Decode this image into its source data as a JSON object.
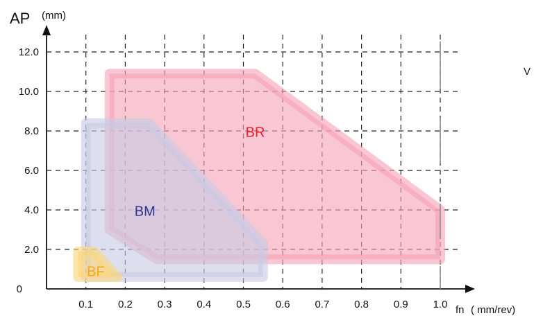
{
  "chart_data": {
    "type": "area",
    "x_axis": {
      "label": "fn",
      "unit": "( mm/rev)",
      "ticks": [
        "0.1",
        "0.2",
        "0.3",
        "0.4",
        "0.5",
        "0.6",
        "0.7",
        "0.8",
        "0.9",
        "1.0"
      ],
      "range": [
        0.0,
        1.05
      ]
    },
    "y_axis": {
      "label": "AP",
      "unit": "(mm)",
      "ticks": [
        "0",
        "2.0",
        "4.0",
        "6.0",
        "8.0",
        "10.0",
        "12.0"
      ],
      "range": [
        0,
        12.9
      ]
    },
    "grid": true,
    "regions": [
      {
        "name": "BR",
        "color": "#f5a3b8",
        "label_color": "#e8202e",
        "label_at": [
          0.53,
          7.7
        ],
        "polygon": [
          [
            0.16,
            10.9
          ],
          [
            0.53,
            10.9
          ],
          [
            1.0,
            4.0
          ],
          [
            1.0,
            1.5
          ],
          [
            0.28,
            1.5
          ],
          [
            0.16,
            3.0
          ]
        ]
      },
      {
        "name": "BM",
        "color": "#c8cce3",
        "label_color": "#2f3590",
        "label_at": [
          0.25,
          3.7
        ],
        "polygon": [
          [
            0.1,
            8.4
          ],
          [
            0.26,
            8.4
          ],
          [
            0.55,
            2.3
          ],
          [
            0.55,
            0.6
          ],
          [
            0.1,
            0.6
          ]
        ]
      },
      {
        "name": "BF",
        "color": "#fcd67a",
        "label_color": "#f6a81c",
        "label_at": [
          0.125,
          0.65
        ],
        "polygon": [
          [
            0.08,
            1.9
          ],
          [
            0.12,
            1.9
          ],
          [
            0.18,
            0.6
          ],
          [
            0.08,
            0.6
          ]
        ]
      }
    ],
    "extra_text": "V"
  }
}
